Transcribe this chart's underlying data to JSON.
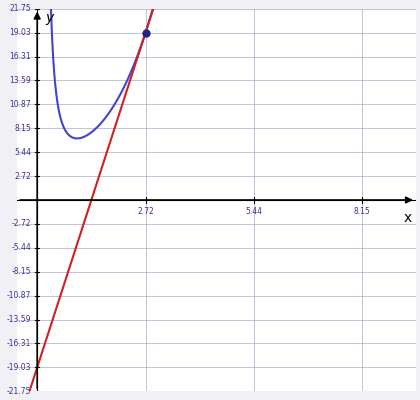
{
  "title": "",
  "xlabel": "x",
  "ylabel": "y",
  "e": 2.718281828459045,
  "x_ticks": [
    2.72,
    5.44,
    8.15
  ],
  "x_tick_labels": [
    "2.72",
    "5.44",
    "8.15"
  ],
  "y_ticks_pos": [
    2.72,
    5.44,
    8.15,
    10.87,
    13.59,
    16.31,
    19.03,
    21.75
  ],
  "y_ticks_neg": [
    -2.72,
    -5.44,
    -8.15,
    -10.87,
    -13.59,
    -16.31,
    -19.03,
    -21.75
  ],
  "xlim": [
    -0.5,
    9.5
  ],
  "ylim": [
    -21.75,
    21.75
  ],
  "func_color": "#4444cc",
  "tangent_color": "#cc2222",
  "point_color": "#222288",
  "background_color": "#ffffff",
  "grid_color": "#aaaacc"
}
